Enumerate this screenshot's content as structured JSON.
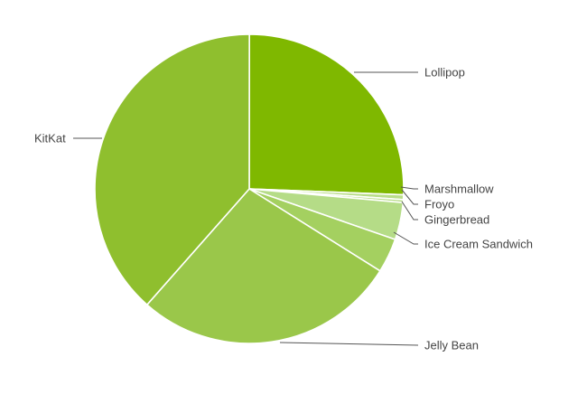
{
  "chart_data": {
    "type": "pie",
    "title": "",
    "slices": [
      {
        "label": "Lollipop",
        "value": 25.6,
        "color": "#7fb800"
      },
      {
        "label": "Marshmallow",
        "value": 0.5,
        "color": "#b9dd8a"
      },
      {
        "label": "Froyo",
        "value": 0.3,
        "color": "#b9dd8a"
      },
      {
        "label": "Gingerbread",
        "value": 3.9,
        "color": "#b5dc87"
      },
      {
        "label": "Ice Cream Sandwich",
        "value": 3.6,
        "color": "#a4d060"
      },
      {
        "label": "Jelly Bean",
        "value": 27.6,
        "color": "#9ac74a"
      },
      {
        "label": "KitKat",
        "value": 38.5,
        "color": "#8fbf2e"
      }
    ],
    "legend": "none",
    "label_style": "leader-lines"
  }
}
